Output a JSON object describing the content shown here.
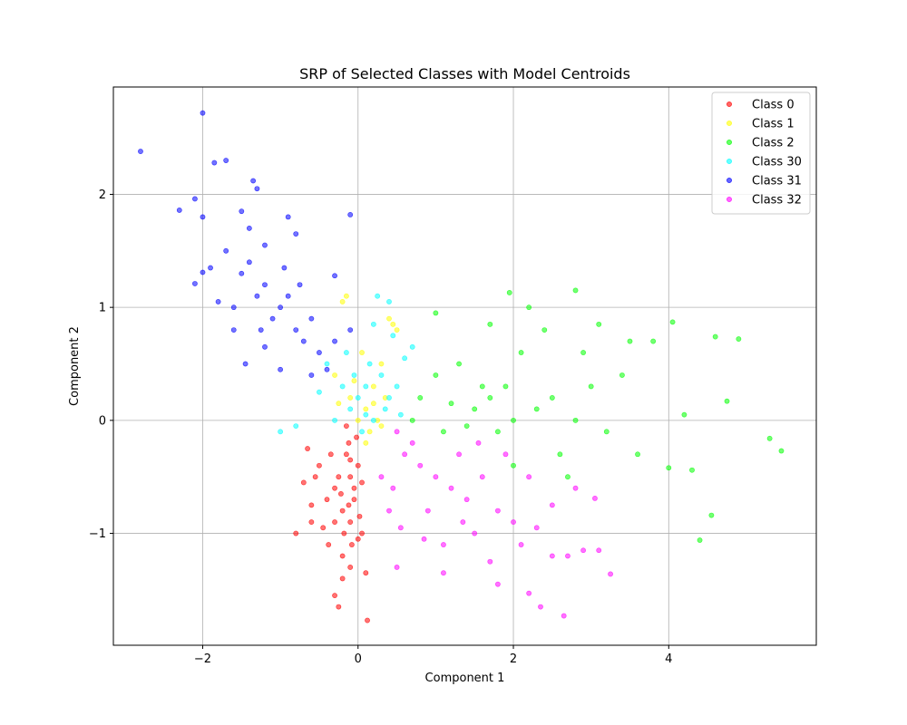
{
  "chart_data": {
    "type": "scatter",
    "title": "SRP of Selected Classes with Model Centroids",
    "xlabel": "Component 1",
    "ylabel": "Component 2",
    "xlim": [
      -3.15,
      5.9
    ],
    "ylim": [
      -1.99,
      2.95
    ],
    "xticks": [
      -2,
      0,
      2,
      4
    ],
    "yticks": [
      -1,
      0,
      1,
      2
    ],
    "xtick_labels": [
      "−2",
      "0",
      "2",
      "4"
    ],
    "ytick_labels": [
      "−1",
      "0",
      "1",
      "2"
    ],
    "grid": true,
    "legend_position": "top-right",
    "series": [
      {
        "name": "Class 0",
        "color": "#ff0000",
        "points": [
          [
            -0.1,
            -0.5
          ],
          [
            -0.15,
            -0.3
          ],
          [
            -0.05,
            -0.6
          ],
          [
            -0.2,
            -0.8
          ],
          [
            -0.1,
            -0.9
          ],
          [
            0.0,
            -0.4
          ],
          [
            -0.25,
            -0.5
          ],
          [
            -0.05,
            -0.7
          ],
          [
            -0.12,
            -0.2
          ],
          [
            -0.3,
            -0.6
          ],
          [
            -0.18,
            -1.0
          ],
          [
            0.02,
            -0.85
          ],
          [
            -0.08,
            -1.1
          ],
          [
            -0.4,
            -0.7
          ],
          [
            -0.35,
            -0.3
          ],
          [
            -0.6,
            -0.75
          ],
          [
            -0.55,
            -0.5
          ],
          [
            -0.65,
            -0.25
          ],
          [
            -0.8,
            -1.0
          ],
          [
            -0.3,
            -1.55
          ],
          [
            -0.25,
            -1.65
          ],
          [
            -0.2,
            -1.4
          ],
          [
            -0.1,
            -1.3
          ],
          [
            0.1,
            -1.35
          ],
          [
            0.12,
            -1.77
          ],
          [
            0.05,
            -1.0
          ],
          [
            -0.02,
            -0.15
          ],
          [
            -0.15,
            -0.05
          ],
          [
            -0.45,
            -0.95
          ],
          [
            -0.5,
            -0.4
          ],
          [
            -0.2,
            -1.2
          ],
          [
            0.0,
            -1.05
          ],
          [
            -0.3,
            -0.9
          ],
          [
            -0.1,
            -0.35
          ],
          [
            0.05,
            -0.55
          ],
          [
            -0.22,
            -0.65
          ],
          [
            -0.38,
            -1.1
          ],
          [
            -0.7,
            -0.55
          ],
          [
            -0.6,
            -0.9
          ],
          [
            -0.12,
            -0.75
          ]
        ]
      },
      {
        "name": "Class 1",
        "color": "#ffff00",
        "points": [
          [
            0.1,
            0.1
          ],
          [
            0.2,
            0.3
          ],
          [
            0.0,
            0.0
          ],
          [
            -0.1,
            0.2
          ],
          [
            0.3,
            0.5
          ],
          [
            0.4,
            0.9
          ],
          [
            0.5,
            0.8
          ],
          [
            -0.2,
            1.05
          ],
          [
            -0.15,
            1.1
          ],
          [
            0.15,
            -0.1
          ],
          [
            0.25,
            0.0
          ],
          [
            -0.05,
            0.35
          ],
          [
            0.35,
            0.2
          ],
          [
            0.05,
            0.6
          ],
          [
            -0.3,
            0.4
          ],
          [
            0.45,
            0.85
          ],
          [
            0.2,
            0.15
          ],
          [
            0.1,
            -0.2
          ],
          [
            -0.25,
            0.15
          ],
          [
            0.3,
            -0.05
          ]
        ]
      },
      {
        "name": "Class 2",
        "color": "#00ff00",
        "points": [
          [
            1.5,
            0.1
          ],
          [
            1.7,
            0.2
          ],
          [
            2.0,
            0.0
          ],
          [
            1.2,
            0.15
          ],
          [
            1.8,
            -0.1
          ],
          [
            2.3,
            0.1
          ],
          [
            1.6,
            0.3
          ],
          [
            1.4,
            -0.05
          ],
          [
            2.5,
            0.2
          ],
          [
            2.8,
            0.0
          ],
          [
            1.0,
            0.4
          ],
          [
            1.3,
            0.5
          ],
          [
            2.1,
            0.6
          ],
          [
            2.4,
            0.8
          ],
          [
            1.7,
            0.85
          ],
          [
            1.95,
            1.13
          ],
          [
            2.2,
            1.0
          ],
          [
            2.8,
            1.15
          ],
          [
            3.1,
            0.85
          ],
          [
            3.5,
            0.7
          ],
          [
            3.8,
            0.7
          ],
          [
            4.05,
            0.87
          ],
          [
            4.6,
            0.74
          ],
          [
            4.9,
            0.72
          ],
          [
            4.75,
            0.17
          ],
          [
            4.2,
            0.05
          ],
          [
            3.0,
            0.3
          ],
          [
            3.2,
            -0.1
          ],
          [
            3.6,
            -0.3
          ],
          [
            4.0,
            -0.42
          ],
          [
            4.3,
            -0.44
          ],
          [
            4.55,
            -0.84
          ],
          [
            4.4,
            -1.06
          ],
          [
            5.3,
            -0.16
          ],
          [
            5.45,
            -0.27
          ],
          [
            2.0,
            -0.4
          ],
          [
            2.6,
            -0.3
          ],
          [
            0.8,
            0.2
          ],
          [
            1.1,
            -0.1
          ],
          [
            0.7,
            0.0
          ],
          [
            1.9,
            0.3
          ],
          [
            2.7,
            -0.5
          ],
          [
            3.4,
            0.4
          ],
          [
            1.0,
            0.95
          ],
          [
            2.9,
            0.6
          ]
        ]
      },
      {
        "name": "Class 30",
        "color": "#00ffff",
        "points": [
          [
            0.0,
            0.2
          ],
          [
            0.1,
            0.3
          ],
          [
            -0.1,
            0.1
          ],
          [
            0.2,
            0.0
          ],
          [
            0.3,
            0.4
          ],
          [
            -0.2,
            0.3
          ],
          [
            0.4,
            0.2
          ],
          [
            0.15,
            0.5
          ],
          [
            -0.3,
            0.0
          ],
          [
            0.5,
            0.3
          ],
          [
            0.6,
            0.55
          ],
          [
            0.7,
            0.65
          ],
          [
            0.25,
            1.1
          ],
          [
            0.4,
            1.05
          ],
          [
            -0.5,
            0.25
          ],
          [
            -0.8,
            -0.05
          ],
          [
            -1.0,
            -0.1
          ],
          [
            0.05,
            -0.1
          ],
          [
            0.35,
            0.1
          ],
          [
            -0.15,
            0.6
          ],
          [
            0.45,
            0.75
          ],
          [
            0.2,
            0.85
          ],
          [
            -0.4,
            0.5
          ],
          [
            0.55,
            0.05
          ],
          [
            0.1,
            0.05
          ],
          [
            -0.05,
            0.4
          ]
        ]
      },
      {
        "name": "Class 31",
        "color": "#0000ff",
        "points": [
          [
            -1.0,
            1.0
          ],
          [
            -1.2,
            1.2
          ],
          [
            -0.8,
            0.8
          ],
          [
            -1.4,
            1.4
          ],
          [
            -1.1,
            0.9
          ],
          [
            -0.9,
            1.1
          ],
          [
            -1.3,
            1.1
          ],
          [
            -0.7,
            0.7
          ],
          [
            -1.5,
            1.3
          ],
          [
            -1.6,
            1.0
          ],
          [
            -1.8,
            1.05
          ],
          [
            -1.7,
            1.5
          ],
          [
            -1.4,
            1.7
          ],
          [
            -1.3,
            2.05
          ],
          [
            -1.35,
            2.12
          ],
          [
            -1.5,
            1.85
          ],
          [
            -1.7,
            2.3
          ],
          [
            -1.85,
            2.28
          ],
          [
            -2.0,
            2.72
          ],
          [
            -2.8,
            2.38
          ],
          [
            -2.1,
            1.96
          ],
          [
            -2.3,
            1.86
          ],
          [
            -2.0,
            1.8
          ],
          [
            -2.1,
            1.21
          ],
          [
            -2.0,
            1.31
          ],
          [
            -0.9,
            1.8
          ],
          [
            -0.8,
            1.65
          ],
          [
            -0.1,
            1.82
          ],
          [
            -0.3,
            1.28
          ],
          [
            -0.6,
            0.9
          ],
          [
            -0.5,
            0.6
          ],
          [
            -0.3,
            0.7
          ],
          [
            -0.1,
            0.8
          ],
          [
            -1.0,
            0.45
          ],
          [
            -1.45,
            0.5
          ],
          [
            -1.2,
            0.65
          ],
          [
            -0.6,
            0.4
          ],
          [
            -0.4,
            0.45
          ],
          [
            -1.6,
            0.8
          ],
          [
            -1.9,
            1.35
          ],
          [
            -1.2,
            1.55
          ],
          [
            -0.95,
            1.35
          ],
          [
            -0.75,
            1.2
          ],
          [
            -1.25,
            0.8
          ]
        ]
      },
      {
        "name": "Class 32",
        "color": "#ff00ff",
        "points": [
          [
            1.0,
            -0.5
          ],
          [
            1.2,
            -0.6
          ],
          [
            0.8,
            -0.4
          ],
          [
            1.4,
            -0.7
          ],
          [
            0.6,
            -0.3
          ],
          [
            1.6,
            -0.5
          ],
          [
            1.8,
            -0.8
          ],
          [
            0.9,
            -0.8
          ],
          [
            1.1,
            -1.1
          ],
          [
            1.5,
            -1.0
          ],
          [
            2.0,
            -0.9
          ],
          [
            2.3,
            -0.95
          ],
          [
            2.5,
            -1.2
          ],
          [
            2.7,
            -1.2
          ],
          [
            2.9,
            -1.15
          ],
          [
            3.1,
            -1.15
          ],
          [
            3.25,
            -1.36
          ],
          [
            2.65,
            -1.73
          ],
          [
            2.2,
            -1.53
          ],
          [
            1.8,
            -1.45
          ],
          [
            1.1,
            -1.35
          ],
          [
            0.5,
            -1.3
          ],
          [
            0.4,
            -0.8
          ],
          [
            0.3,
            -0.5
          ],
          [
            0.5,
            -0.1
          ],
          [
            0.7,
            -0.2
          ],
          [
            1.3,
            -0.3
          ],
          [
            2.2,
            -0.5
          ],
          [
            2.5,
            -0.75
          ],
          [
            2.8,
            -0.6
          ],
          [
            3.05,
            -0.69
          ],
          [
            1.9,
            -0.3
          ],
          [
            0.55,
            -0.95
          ],
          [
            1.7,
            -1.25
          ],
          [
            2.35,
            -1.65
          ],
          [
            1.35,
            -0.9
          ],
          [
            2.1,
            -1.1
          ],
          [
            0.85,
            -1.05
          ],
          [
            1.55,
            -0.2
          ],
          [
            0.45,
            -0.6
          ]
        ]
      }
    ]
  }
}
